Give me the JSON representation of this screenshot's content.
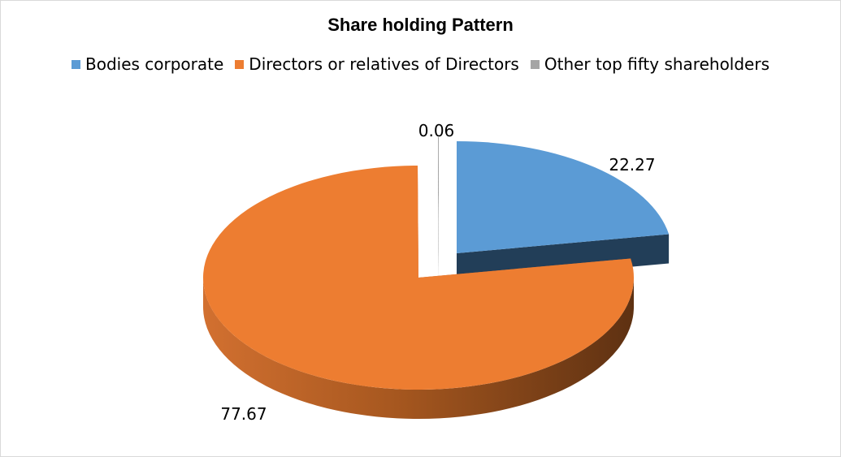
{
  "chart_data": {
    "type": "pie",
    "title": "Share holding Pattern",
    "legend_position": "top",
    "style": "3d-exploded",
    "slices": [
      {
        "label": "Bodies corporate",
        "value": 22.27,
        "value_label": "22.27",
        "color": "#5b9bd5",
        "side_color": "#223e58"
      },
      {
        "label": "Directors or relatives of Directors",
        "value": 77.67,
        "value_label": "77.67",
        "color": "#ed7d31",
        "side_color": "#c6652a"
      },
      {
        "label": "Other top fifty shareholders",
        "value": 0.06,
        "value_label": "0.06",
        "color": "#a5a5a5",
        "side_color": "#595959"
      }
    ]
  }
}
